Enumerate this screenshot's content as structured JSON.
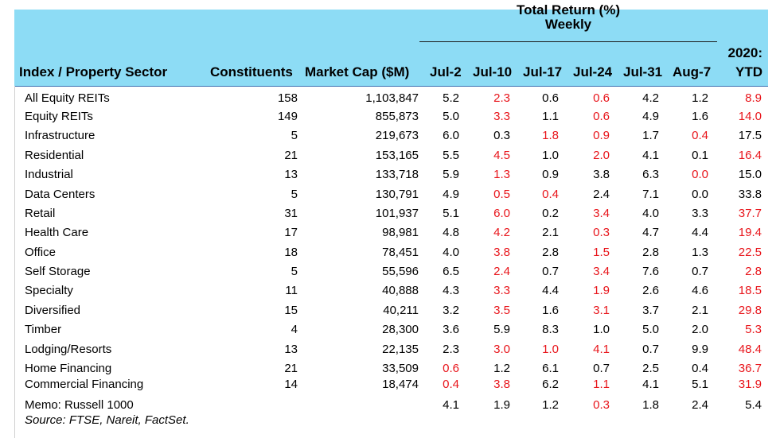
{
  "header": {
    "group_title": "Total Return (%)",
    "group_sub": "Weekly",
    "ytd_top": "2020:",
    "columns": {
      "sector": "Index / Property Sector",
      "constituents": "Constituents",
      "market_cap": "Market Cap ($M)",
      "w1": "Jul-2",
      "w2": "Jul-10",
      "w3": "Jul-17",
      "w4": "Jul-24",
      "w5": "Jul-31",
      "w6": "Aug-7",
      "ytd": "YTD"
    }
  },
  "colors": {
    "header_bg": "#8ddcf5",
    "negative": "#e8141a"
  },
  "rows": [
    {
      "name": "All Equity REITs",
      "constituents": "158",
      "market_cap": "1,103,847",
      "w": [
        "5.2",
        "2.3",
        "0.6",
        "0.6",
        "4.2",
        "1.2"
      ],
      "ytd": "8.9",
      "red": [
        false,
        true,
        false,
        true,
        false,
        false
      ],
      "ytd_red": true
    },
    {
      "name": "Equity REITs",
      "constituents": "149",
      "market_cap": "855,873",
      "w": [
        "5.0",
        "3.3",
        "1.1",
        "0.6",
        "4.9",
        "1.6"
      ],
      "ytd": "14.0",
      "red": [
        false,
        true,
        false,
        true,
        false,
        false
      ],
      "ytd_red": true
    },
    {
      "name": "Infrastructure",
      "constituents": "5",
      "market_cap": "219,673",
      "w": [
        "6.0",
        "0.3",
        "1.8",
        "0.9",
        "1.7",
        "0.4"
      ],
      "ytd": "17.5",
      "red": [
        false,
        false,
        true,
        true,
        false,
        true
      ],
      "ytd_red": false
    },
    {
      "name": "Residential",
      "constituents": "21",
      "market_cap": "153,165",
      "w": [
        "5.5",
        "4.5",
        "1.0",
        "2.0",
        "4.1",
        "0.1"
      ],
      "ytd": "16.4",
      "red": [
        false,
        true,
        false,
        true,
        false,
        false
      ],
      "ytd_red": true
    },
    {
      "name": "Industrial",
      "constituents": "13",
      "market_cap": "133,718",
      "w": [
        "5.9",
        "1.3",
        "0.9",
        "3.8",
        "6.3",
        "0.0"
      ],
      "ytd": "15.0",
      "red": [
        false,
        true,
        false,
        false,
        false,
        true
      ],
      "ytd_red": false
    },
    {
      "name": "Data Centers",
      "constituents": "5",
      "market_cap": "130,791",
      "w": [
        "4.9",
        "0.5",
        "0.4",
        "2.4",
        "7.1",
        "0.0"
      ],
      "ytd": "33.8",
      "red": [
        false,
        true,
        true,
        false,
        false,
        false
      ],
      "ytd_red": false
    },
    {
      "name": "Retail",
      "constituents": "31",
      "market_cap": "101,937",
      "w": [
        "5.1",
        "6.0",
        "0.2",
        "3.4",
        "4.0",
        "3.3"
      ],
      "ytd": "37.7",
      "red": [
        false,
        true,
        false,
        true,
        false,
        false
      ],
      "ytd_red": true
    },
    {
      "name": "Health Care",
      "constituents": "17",
      "market_cap": "98,981",
      "w": [
        "4.8",
        "4.2",
        "2.1",
        "0.3",
        "4.7",
        "4.4"
      ],
      "ytd": "19.4",
      "red": [
        false,
        true,
        false,
        true,
        false,
        false
      ],
      "ytd_red": true
    },
    {
      "name": "Office",
      "constituents": "18",
      "market_cap": "78,451",
      "w": [
        "4.0",
        "3.8",
        "2.8",
        "1.5",
        "2.8",
        "1.3"
      ],
      "ytd": "22.5",
      "red": [
        false,
        true,
        false,
        true,
        false,
        false
      ],
      "ytd_red": true
    },
    {
      "name": "Self Storage",
      "constituents": "5",
      "market_cap": "55,596",
      "w": [
        "6.5",
        "2.4",
        "0.7",
        "3.4",
        "7.6",
        "0.7"
      ],
      "ytd": "2.8",
      "red": [
        false,
        true,
        false,
        true,
        false,
        false
      ],
      "ytd_red": true
    },
    {
      "name": "Specialty",
      "constituents": "11",
      "market_cap": "40,888",
      "w": [
        "4.3",
        "3.3",
        "4.4",
        "1.9",
        "2.6",
        "4.6"
      ],
      "ytd": "18.5",
      "red": [
        false,
        true,
        false,
        true,
        false,
        false
      ],
      "ytd_red": true
    },
    {
      "name": "Diversified",
      "constituents": "15",
      "market_cap": "40,211",
      "w": [
        "3.2",
        "3.5",
        "1.6",
        "3.1",
        "3.7",
        "2.1"
      ],
      "ytd": "29.8",
      "red": [
        false,
        true,
        false,
        true,
        false,
        false
      ],
      "ytd_red": true
    },
    {
      "name": "Timber",
      "constituents": "4",
      "market_cap": "28,300",
      "w": [
        "3.6",
        "5.9",
        "8.3",
        "1.0",
        "5.0",
        "2.0"
      ],
      "ytd": "5.3",
      "red": [
        false,
        false,
        false,
        false,
        false,
        false
      ],
      "ytd_red": true
    },
    {
      "name": "Lodging/Resorts",
      "constituents": "13",
      "market_cap": "22,135",
      "w": [
        "2.3",
        "3.0",
        "1.0",
        "4.1",
        "0.7",
        "9.9"
      ],
      "ytd": "48.4",
      "red": [
        false,
        true,
        true,
        true,
        false,
        false
      ],
      "ytd_red": true
    },
    {
      "name": "Home Financing",
      "constituents": "21",
      "market_cap": "33,509",
      "w": [
        "0.6",
        "1.2",
        "6.1",
        "0.7",
        "2.5",
        "0.4"
      ],
      "ytd": "36.7",
      "red": [
        true,
        false,
        false,
        false,
        false,
        false
      ],
      "ytd_red": true
    },
    {
      "name": "Commercial Financing",
      "constituents": "14",
      "market_cap": "18,474",
      "w": [
        "0.4",
        "3.8",
        "6.2",
        "1.1",
        "4.1",
        "5.1"
      ],
      "ytd": "31.9",
      "red": [
        true,
        true,
        false,
        true,
        false,
        false
      ],
      "ytd_red": true
    },
    {
      "name": "Memo: Russell 1000",
      "constituents": "",
      "market_cap": "",
      "w": [
        "4.1",
        "1.9",
        "1.2",
        "0.3",
        "1.8",
        "2.4"
      ],
      "ytd": "5.4",
      "red": [
        false,
        false,
        false,
        true,
        false,
        false
      ],
      "ytd_red": false
    }
  ],
  "source": "Source: FTSE, Nareit, FactSet."
}
